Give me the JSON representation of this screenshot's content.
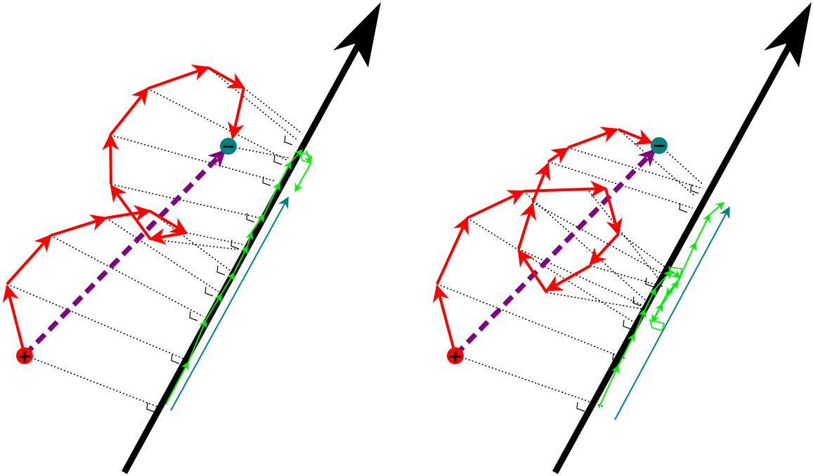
{
  "panels": [
    {
      "id": "left",
      "start_sign": "+",
      "end_sign": "−",
      "colors": {
        "path": "#ff0000",
        "projection": "#00ff00",
        "axis": "#000000",
        "resultant": "#800080",
        "reference": "#008080",
        "start": "#ff0000",
        "end": "#008080"
      }
    },
    {
      "id": "right",
      "start_sign": "+",
      "end_sign": "−",
      "colors": {
        "path": "#ff0000",
        "projection": "#00ff00",
        "axis": "#000000",
        "resultant": "#800080",
        "reference": "#008080",
        "start": "#ff0000",
        "end": "#008080"
      }
    }
  ]
}
